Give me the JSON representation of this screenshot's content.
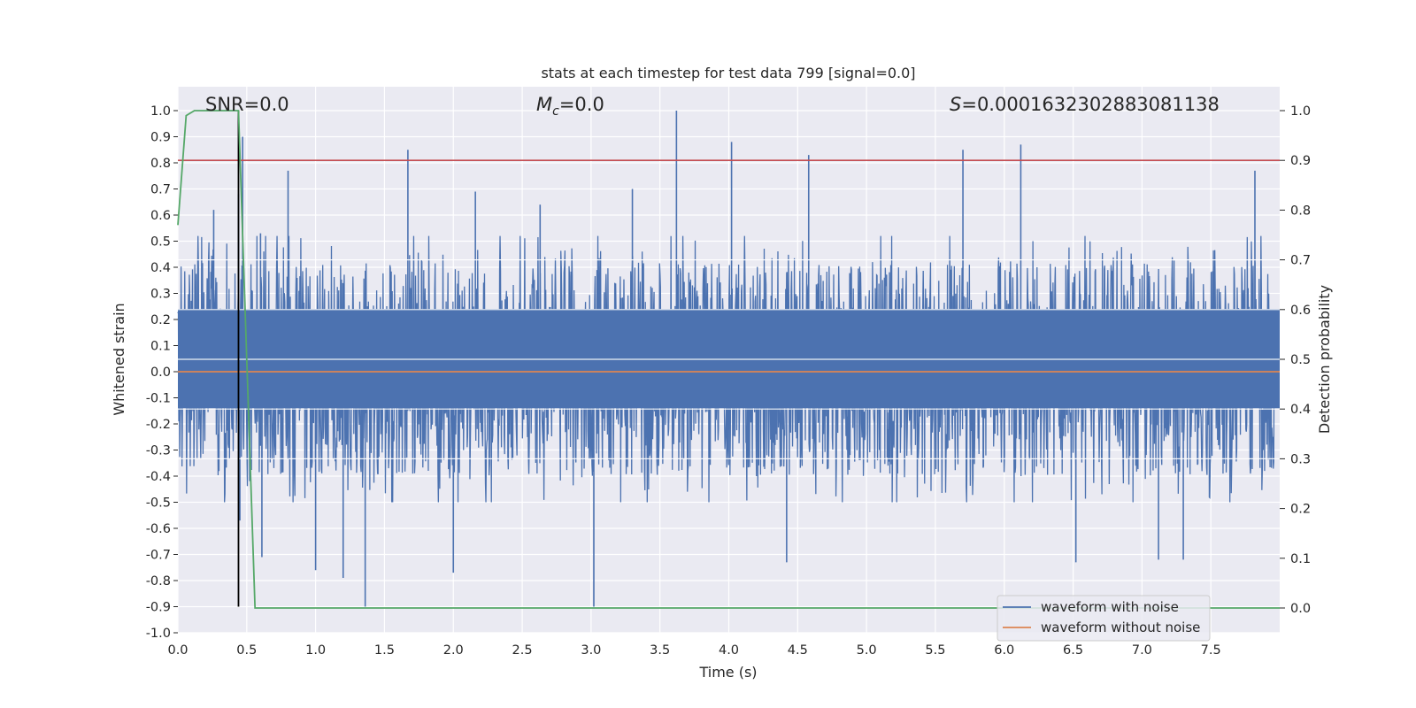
{
  "chart_data": {
    "type": "line",
    "title": "stats at each timestep for test data 799 [signal=0.0]",
    "xlabel": "Time (s)",
    "ylabel_left": "Whitened strain",
    "ylabel_right": "Detection probability",
    "xlim": [
      0.0,
      8.0
    ],
    "ylim_left": [
      -1.0,
      1.09
    ],
    "ylim_right": [
      -0.05,
      1.03
    ],
    "x_ticks": [
      "0.0",
      "0.5",
      "1.0",
      "1.5",
      "2.0",
      "2.5",
      "3.0",
      "3.5",
      "4.0",
      "4.5",
      "5.0",
      "5.5",
      "6.0",
      "6.5",
      "7.0",
      "7.5"
    ],
    "y_ticks_left": [
      "1.0",
      "0.9",
      "0.8",
      "0.7",
      "0.6",
      "0.5",
      "0.4",
      "0.3",
      "0.2",
      "0.1",
      "0.0",
      "-0.1",
      "-0.2",
      "-0.3",
      "-0.4",
      "-0.5",
      "-0.6",
      "-0.7",
      "-0.8",
      "-0.9",
      "-1.0"
    ],
    "y_ticks_right": [
      "1.0",
      "0.9",
      "0.8",
      "0.7",
      "0.6",
      "0.5",
      "0.4",
      "0.3",
      "0.2",
      "0.1",
      "0.0"
    ],
    "annotations": {
      "snr": "SNR=0.0",
      "mc_symbol": "M",
      "mc_sub": "c",
      "mc_value": "=0.0",
      "s_symbol": "S",
      "s_value": "=0.00016323028830811 38"
    },
    "grid": true,
    "legend_position": "lower-right",
    "series": [
      {
        "name": "waveform with noise",
        "axis": "left",
        "color": "#4c72b0",
        "envelope_typical": [
          -0.4,
          0.42
        ],
        "dense_core": [
          -0.14,
          0.24
        ],
        "spikes": [
          {
            "x": 0.44,
            "y": 0.68
          },
          {
            "x": 0.45,
            "y": -0.57
          },
          {
            "x": 0.47,
            "y": 0.9
          },
          {
            "x": 0.6,
            "y": 0.53
          },
          {
            "x": 0.61,
            "y": -0.71
          },
          {
            "x": 0.8,
            "y": 0.77
          },
          {
            "x": 1.0,
            "y": -0.76
          },
          {
            "x": 1.2,
            "y": -0.79
          },
          {
            "x": 1.36,
            "y": -0.9
          },
          {
            "x": 1.67,
            "y": 0.85
          },
          {
            "x": 2.0,
            "y": -0.77
          },
          {
            "x": 3.02,
            "y": -0.9
          },
          {
            "x": 3.62,
            "y": 1.0
          },
          {
            "x": 4.02,
            "y": 0.88
          },
          {
            "x": 4.42,
            "y": -0.73
          },
          {
            "x": 4.58,
            "y": 0.83
          },
          {
            "x": 5.7,
            "y": 0.85
          },
          {
            "x": 6.12,
            "y": 0.87
          },
          {
            "x": 6.52,
            "y": -0.73
          },
          {
            "x": 7.12,
            "y": -0.72
          },
          {
            "x": 7.82,
            "y": 0.77
          },
          {
            "x": 3.3,
            "y": 0.7
          },
          {
            "x": 2.63,
            "y": 0.64
          },
          {
            "x": 2.16,
            "y": 0.69
          },
          {
            "x": 0.26,
            "y": 0.62
          },
          {
            "x": 7.3,
            "y": -0.72
          }
        ]
      },
      {
        "name": "waveform without noise",
        "axis": "left",
        "color": "#dd8452",
        "value": 0.0
      },
      {
        "axis": "right",
        "color": "#55a868",
        "points": [
          [
            0.0,
            0.77
          ],
          [
            0.06,
            0.99
          ],
          [
            0.12,
            1.0
          ],
          [
            0.44,
            1.0
          ],
          [
            0.56,
            0.0
          ],
          [
            8.0,
            0.0
          ]
        ]
      }
    ],
    "reference_lines": {
      "threshold_right_axis": {
        "value": 0.9,
        "color": "#c44e52"
      },
      "marker_x": {
        "x": 0.44,
        "y_range": [
          -0.9,
          1.0
        ],
        "color": "#000000"
      }
    }
  }
}
